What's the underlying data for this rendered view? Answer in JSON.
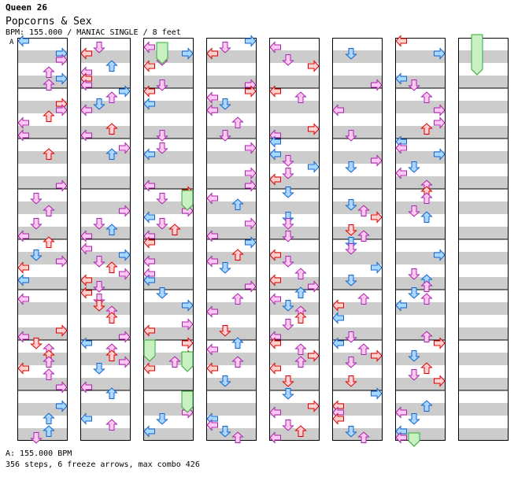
{
  "header": {
    "title": "Queen 26",
    "song": "Popcorns & Sex",
    "meta": "BPM: 155.000 / MANIAC SINGLE / 8 feet",
    "bpm_marker": "A"
  },
  "footer": {
    "bpm_legend": "A: 155.000 BPM",
    "stats": "356 steps, 6 freeze arrows, max combo 426"
  },
  "chart": {
    "columns": 8,
    "lanes": 4,
    "measures_per_column": 8,
    "colors": {
      "red_fill": "#ffd0d0",
      "red_stroke": "#dd0000",
      "blue_fill": "#a8d8ff",
      "blue_stroke": "#1166cc",
      "pink_fill": "#ffc8f4",
      "pink_stroke": "#aa22aa",
      "freeze_fill": "#c8f0c0",
      "freeze_stroke": "#33aa33",
      "stripe": "#cccccc"
    }
  }
}
